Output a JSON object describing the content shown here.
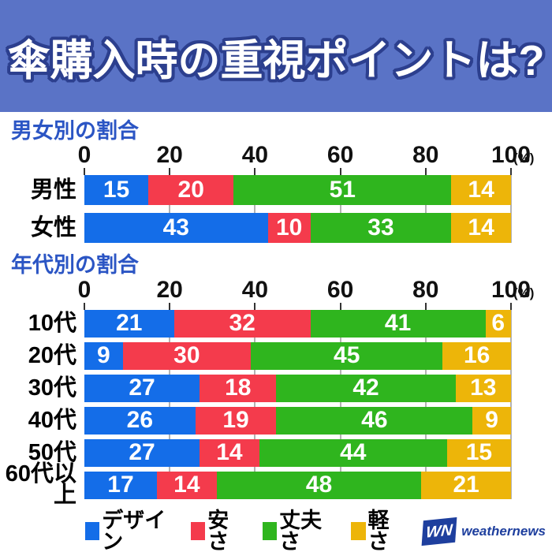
{
  "header": {
    "title": "傘購入時の重視ポイントは?"
  },
  "colors": {
    "header_bg": "#5a73c6",
    "title_outline": "#2c3f8e",
    "section_title": "#2b55c4",
    "design_blue": "#146de8",
    "price_red": "#f43b4c",
    "durability_green": "#2fb51e",
    "weight_yellow": "#edb509",
    "logo_blue": "#1e3f9e"
  },
  "chart_data": [
    {
      "type": "bar",
      "orientation": "horizontal_stacked",
      "title": "男女別の割合",
      "categories": [
        "男性",
        "女性"
      ],
      "series": [
        {
          "name": "デザイン",
          "color": "#146de8",
          "values": [
            15,
            43
          ]
        },
        {
          "name": "安さ",
          "color": "#f43b4c",
          "values": [
            20,
            10
          ]
        },
        {
          "name": "丈夫さ",
          "color": "#2fb51e",
          "values": [
            51,
            33
          ]
        },
        {
          "name": "軽さ",
          "color": "#edb509",
          "values": [
            14,
            14
          ]
        }
      ],
      "xlim": [
        0,
        100
      ],
      "x_ticks": [
        0,
        20,
        40,
        60,
        80,
        100
      ],
      "unit": "(%)",
      "grid": true,
      "value_labels": "inside_white"
    },
    {
      "type": "bar",
      "orientation": "horizontal_stacked",
      "title": "年代別の割合",
      "categories": [
        "10代",
        "20代",
        "30代",
        "40代",
        "50代",
        "60代以上"
      ],
      "series": [
        {
          "name": "デザイン",
          "color": "#146de8",
          "values": [
            21,
            9,
            27,
            26,
            27,
            17
          ]
        },
        {
          "name": "安さ",
          "color": "#f43b4c",
          "values": [
            32,
            30,
            18,
            19,
            14,
            14
          ]
        },
        {
          "name": "丈夫さ",
          "color": "#2fb51e",
          "values": [
            41,
            45,
            42,
            46,
            44,
            48
          ]
        },
        {
          "name": "軽さ",
          "color": "#edb509",
          "values": [
            6,
            16,
            13,
            9,
            15,
            21
          ]
        }
      ],
      "xlim": [
        0,
        100
      ],
      "x_ticks": [
        0,
        20,
        40,
        60,
        80,
        100
      ],
      "unit": "(%)",
      "grid": true,
      "value_labels": "inside_white"
    }
  ],
  "legend": {
    "position": "bottom",
    "items": [
      {
        "label": "デザイン",
        "color": "#146de8"
      },
      {
        "label": "安さ",
        "color": "#f43b4c"
      },
      {
        "label": "丈夫さ",
        "color": "#2fb51e"
      },
      {
        "label": "軽さ",
        "color": "#edb509"
      }
    ]
  },
  "footer": {
    "logo_mark": "WN",
    "logo_text": "weathernews"
  }
}
